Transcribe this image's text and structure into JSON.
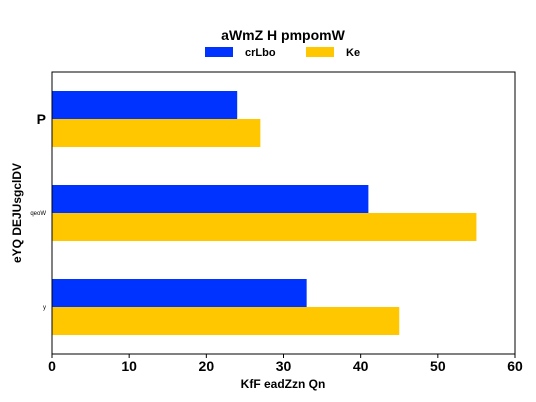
{
  "chart_data": {
    "type": "bar",
    "orientation": "horizontal",
    "title": "aWmZ H pmpomW",
    "xlabel": "KfF eadZzn Qn",
    "ylabel": "eYQ DEJUsgclDV",
    "categories": [
      "P",
      "qeoW",
      "y"
    ],
    "series": [
      {
        "name": "crLbo",
        "color": "#0033ff",
        "values": [
          24,
          41,
          33
        ]
      },
      {
        "name": "Ke",
        "color": "#ffc700",
        "values": [
          27,
          55,
          45
        ]
      }
    ],
    "xlim": [
      0,
      60
    ],
    "xticks": [
      "0",
      "10",
      "20",
      "30",
      "40",
      "50",
      "60"
    ],
    "grid": false,
    "legend_position": "top-center"
  }
}
